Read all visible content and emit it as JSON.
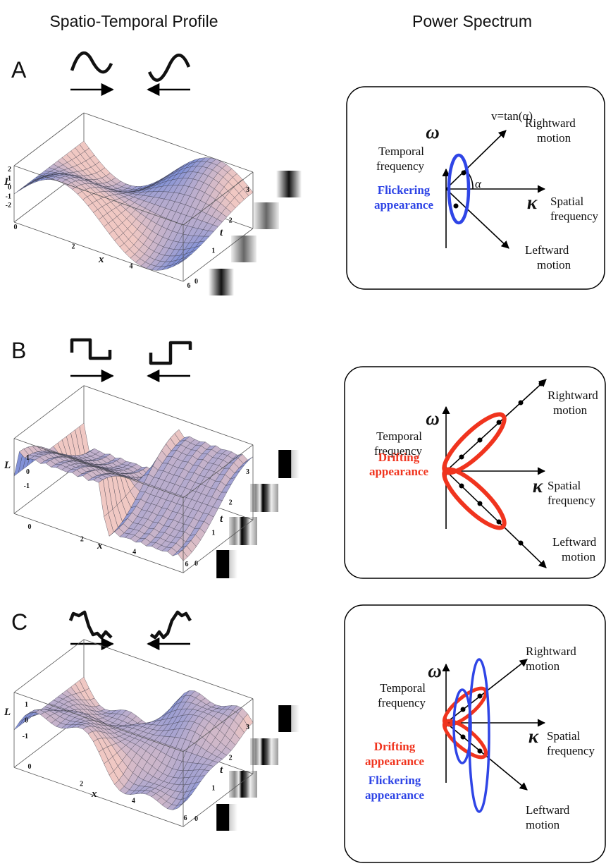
{
  "headers": {
    "left": "Spatio-Temporal Profile",
    "right": "Power Spectrum"
  },
  "panels": [
    {
      "label": "A",
      "plot": {
        "z_label": "L",
        "z_ticks": [
          "2",
          "1",
          "0",
          "-1",
          "-2"
        ],
        "x_label": "x",
        "x_ticks": [
          "0",
          "2",
          "4",
          "6"
        ],
        "t_label": "t",
        "t_ticks": [
          "0",
          "1",
          "2",
          "3"
        ]
      },
      "spectrum": {
        "temporal": [
          "Temporal",
          "frequency"
        ],
        "omega": "ω",
        "velocity": "v=tan(α)",
        "rightward": [
          "Rightward",
          "motion"
        ],
        "angle": "α",
        "appearances": [
          [
            "Flickering",
            "appearance"
          ]
        ],
        "kappa": "κ",
        "spatial": [
          "Spatial",
          "frequency"
        ],
        "leftward": [
          "Leftward",
          "motion"
        ]
      }
    },
    {
      "label": "B",
      "plot": {
        "z_label": "L",
        "z_ticks": [
          "1",
          "0",
          "-1"
        ],
        "x_label": "x",
        "x_ticks": [
          "0",
          "2",
          "4",
          "6"
        ],
        "t_label": "t",
        "t_ticks": [
          "0",
          "1",
          "2",
          "3"
        ]
      },
      "spectrum": {
        "temporal": [
          "Temporal",
          "frequency"
        ],
        "omega": "ω",
        "rightward": [
          "Rightward",
          "motion"
        ],
        "appearances": [
          [
            "Drifting",
            "appearance"
          ]
        ],
        "kappa": "κ",
        "spatial": [
          "Spatial",
          "frequency"
        ],
        "leftward": [
          "Leftward",
          "motion"
        ]
      }
    },
    {
      "label": "C",
      "plot": {
        "z_label": "L",
        "z_ticks": [
          "1",
          "0",
          "-1"
        ],
        "x_label": "x",
        "x_ticks": [
          "0",
          "2",
          "4",
          "6"
        ],
        "t_label": "t",
        "t_ticks": [
          "0",
          "1",
          "2",
          "3"
        ]
      },
      "spectrum": {
        "temporal": [
          "Temporal",
          "frequency"
        ],
        "omega": "ω",
        "rightward": [
          "Rightward",
          "motion"
        ],
        "appearances": [
          [
            "Drifting",
            "appearance"
          ],
          [
            "Flickering",
            "appearance"
          ]
        ],
        "kappa": "κ",
        "spatial": [
          "Spatial",
          "frequency"
        ],
        "leftward": [
          "Leftward",
          "motion"
        ]
      }
    }
  ]
}
